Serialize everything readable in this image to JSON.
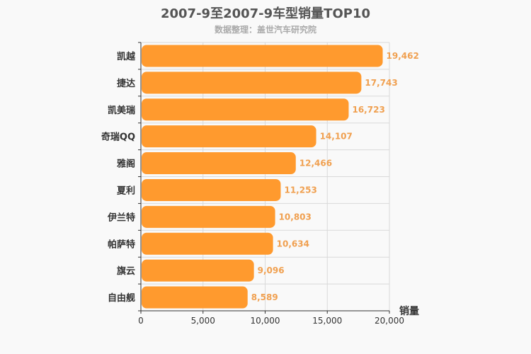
{
  "chart_data": {
    "type": "bar",
    "orientation": "horizontal",
    "title": "2007-9至2007-9车型销量TOP10",
    "subtitle": "数据整理：盖世汽车研究院",
    "xlabel": "销量",
    "ylabel": "",
    "xlim": [
      0,
      20000
    ],
    "xticks": [
      0,
      5000,
      10000,
      15000,
      20000
    ],
    "xtick_labels": [
      "0",
      "5,000",
      "10,000",
      "15,000",
      "20,000"
    ],
    "categories": [
      "凯越",
      "捷达",
      "凯美瑞",
      "奇瑞QQ",
      "雅阁",
      "夏利",
      "伊兰特",
      "帕萨特",
      "旗云",
      "自由舰"
    ],
    "values": [
      19462,
      17743,
      16723,
      14107,
      12466,
      11253,
      10803,
      10634,
      9096,
      8589
    ],
    "value_labels": [
      "19,462",
      "17,743",
      "16,723",
      "14,107",
      "12,466",
      "11,253",
      "10,803",
      "10,634",
      "9,096",
      "8,589"
    ],
    "bar_color": "#ff9a2e",
    "label_color": "#f0a050",
    "grid": true
  }
}
